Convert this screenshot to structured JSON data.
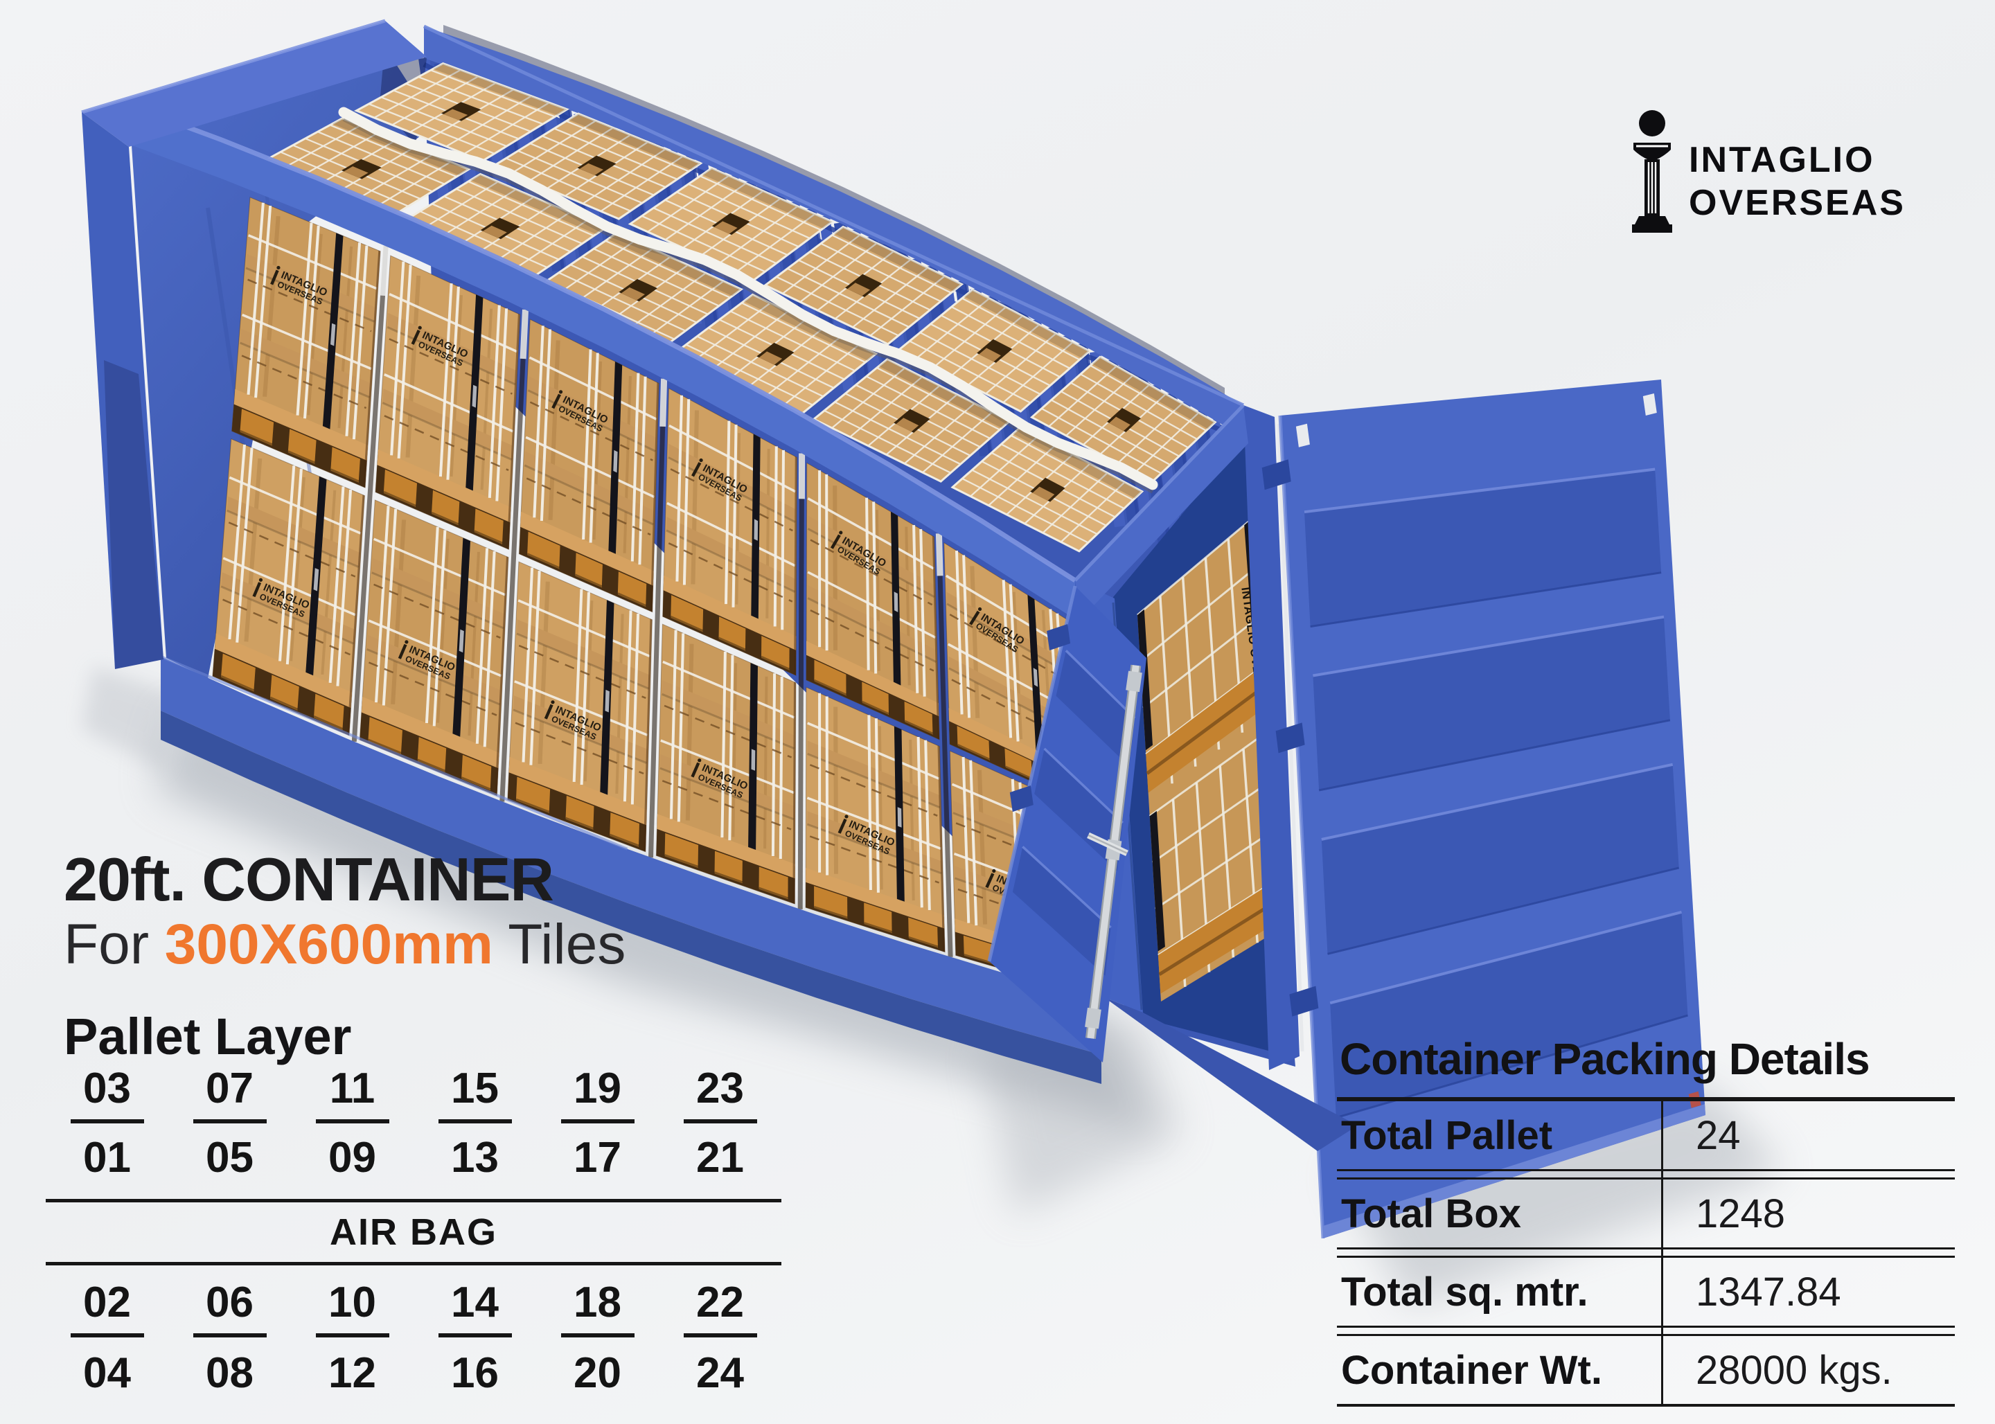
{
  "logo": {
    "line1": "INTAGLIO",
    "line2": "OVERSEAS",
    "icon": "column-i-icon"
  },
  "title": {
    "line1": "20ft. CONTAINER",
    "line2_prefix": "For ",
    "line2_highlight": "300X600mm",
    "line2_suffix": " Tiles"
  },
  "pallet_layer": {
    "heading": "Pallet Layer",
    "row1": [
      "03",
      "07",
      "11",
      "15",
      "19",
      "23"
    ],
    "row2": [
      "01",
      "05",
      "09",
      "13",
      "17",
      "21"
    ],
    "separator_label": "AIR BAG",
    "row3": [
      "02",
      "06",
      "10",
      "14",
      "18",
      "22"
    ],
    "row4": [
      "04",
      "08",
      "12",
      "16",
      "20",
      "24"
    ]
  },
  "packing_details": {
    "title": "Container Packing Details",
    "rows": [
      {
        "label": "Total Pallet",
        "value": "24"
      },
      {
        "label": "Total Box",
        "value": "1248"
      },
      {
        "label": "Total sq. mtr.",
        "value": "1347.84"
      },
      {
        "label": "Container Wt.",
        "value": "28000 kgs."
      }
    ]
  },
  "scene": {
    "box_print_line1": "INTAGLIO",
    "box_print_line2": "OVERSEAS"
  },
  "colors": {
    "accent_orange": "#F0772E",
    "container_blue": "#4565C4",
    "container_blue_dark": "#2B479E",
    "wood": "#D2A066",
    "pallet_orange": "#C4822F",
    "strap_white": "#F3F0E8",
    "text_dark": "#1C1C1E",
    "table_line": "#161616"
  }
}
